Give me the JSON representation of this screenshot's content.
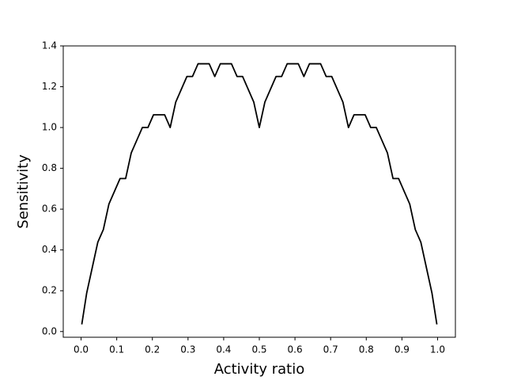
{
  "chart_data": {
    "type": "line",
    "xlabel": "Activity ratio",
    "ylabel": "Sensitivity",
    "x": [
      0.002,
      0.015625,
      0.03125,
      0.046875,
      0.0625,
      0.078125,
      0.09375,
      0.109375,
      0.125,
      0.140625,
      0.15625,
      0.171875,
      0.1875,
      0.203125,
      0.21875,
      0.234375,
      0.25,
      0.265625,
      0.28125,
      0.296875,
      0.3125,
      0.328125,
      0.34375,
      0.359375,
      0.375,
      0.390625,
      0.40625,
      0.421875,
      0.4375,
      0.453125,
      0.46875,
      0.484375,
      0.5,
      0.515625,
      0.53125,
      0.546875,
      0.5625,
      0.578125,
      0.59375,
      0.609375,
      0.625,
      0.640625,
      0.65625,
      0.671875,
      0.6875,
      0.703125,
      0.71875,
      0.734375,
      0.75,
      0.765625,
      0.78125,
      0.796875,
      0.8125,
      0.828125,
      0.84375,
      0.859375,
      0.875,
      0.890625,
      0.90625,
      0.921875,
      0.9375,
      0.953125,
      0.96875,
      0.984375,
      0.998
    ],
    "series": [
      {
        "color": "#000000",
        "values": [
          0.035,
          0.1875,
          0.3125,
          0.4375,
          0.5,
          0.625,
          0.6875,
          0.75,
          0.75,
          0.875,
          0.9375,
          1.0,
          1.0,
          1.0625,
          1.0625,
          1.0625,
          1.0,
          1.125,
          1.1875,
          1.25,
          1.25,
          1.3125,
          1.3125,
          1.3125,
          1.25,
          1.3125,
          1.3125,
          1.3125,
          1.25,
          1.25,
          1.1875,
          1.125,
          1.0,
          1.125,
          1.1875,
          1.25,
          1.25,
          1.3125,
          1.3125,
          1.3125,
          1.25,
          1.3125,
          1.3125,
          1.3125,
          1.25,
          1.25,
          1.1875,
          1.125,
          1.0,
          1.0625,
          1.0625,
          1.0625,
          1.0,
          1.0,
          0.9375,
          0.875,
          0.75,
          0.75,
          0.6875,
          0.625,
          0.5,
          0.4375,
          0.3125,
          0.1875,
          0.035
        ]
      }
    ],
    "xlim": [
      -0.05,
      1.05
    ],
    "xticks": [
      {
        "value": 0,
        "label": "0.0"
      },
      0.1,
      0.2,
      0.3,
      0.4,
      0.5,
      0.6,
      0.7,
      0.8,
      0.9,
      {
        "value": 1,
        "label": "1.0"
      }
    ],
    "ylim": [
      -0.028,
      1.4
    ],
    "yticks": [
      {
        "value": 0,
        "label": "0.0"
      },
      0.2,
      0.4,
      0.6,
      0.8,
      {
        "value": 1,
        "label": "1.0"
      },
      1.2,
      1.4
    ],
    "grid": false
  }
}
